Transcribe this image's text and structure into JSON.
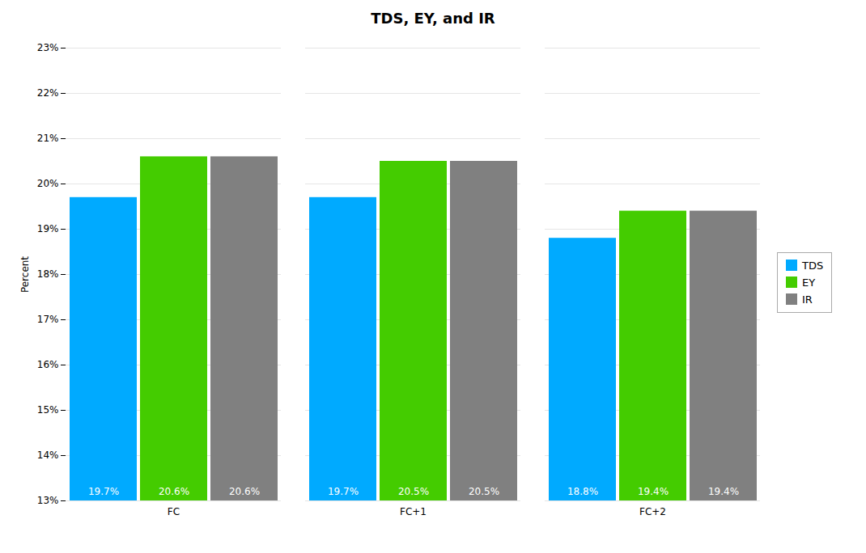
{
  "chart_data": {
    "type": "bar",
    "title": "TDS, EY, and IR",
    "categories": [
      "FC",
      "FC+1",
      "FC+2"
    ],
    "series": [
      {
        "name": "TDS",
        "color": "#00AAFF",
        "values": [
          19.7,
          19.7,
          18.8
        ],
        "value_labels": [
          "19.7%",
          "19.7%",
          "18.8%"
        ]
      },
      {
        "name": "EY",
        "color": "#44CC00",
        "values": [
          20.6,
          20.5,
          19.4
        ],
        "value_labels": [
          "20.6%",
          "20.5%",
          "19.4%"
        ]
      },
      {
        "name": "IR",
        "color": "#808080",
        "values": [
          20.6,
          20.5,
          19.4
        ],
        "value_labels": [
          "20.6%",
          "20.5%",
          "19.4%"
        ]
      }
    ],
    "ylabel": "Percent",
    "ylim": [
      13,
      23
    ],
    "yticks": [
      {
        "value": 13,
        "label": "13%"
      },
      {
        "value": 14,
        "label": "14%"
      },
      {
        "value": 15,
        "label": "15%"
      },
      {
        "value": 16,
        "label": "16%"
      },
      {
        "value": 17,
        "label": "17%"
      },
      {
        "value": 18,
        "label": "18%"
      },
      {
        "value": 19,
        "label": "19%"
      },
      {
        "value": 20,
        "label": "20%"
      },
      {
        "value": 21,
        "label": "21%"
      },
      {
        "value": 22,
        "label": "22%"
      },
      {
        "value": 23,
        "label": "23%"
      }
    ],
    "grid": true,
    "legend": "right",
    "data_labels": true
  }
}
